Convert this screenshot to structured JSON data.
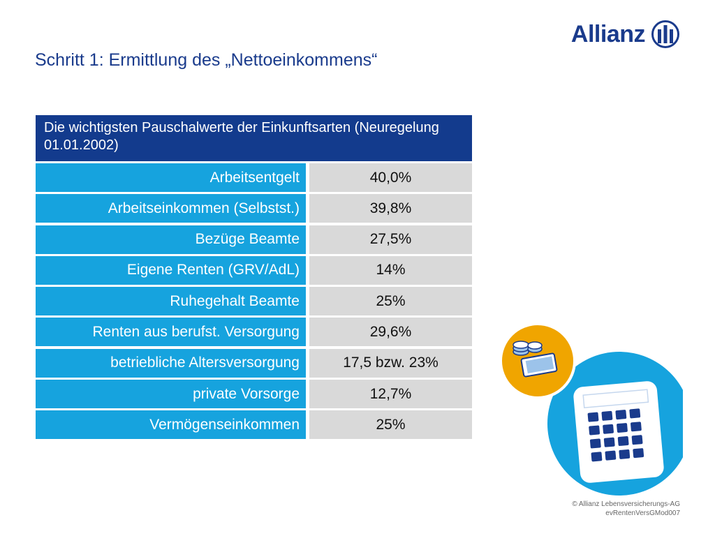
{
  "brand": {
    "name": "Allianz",
    "color": "#1a3b8c"
  },
  "title": "Schritt 1: Ermittlung des „Nettoeinkommens“",
  "table": {
    "header": "Die wichtigsten Pauschalwerte der Einkunftsarten (Neuregelung 01.01.2002)",
    "rows": [
      {
        "label": "Arbeitsentgelt",
        "value": "40,0%"
      },
      {
        "label": "Arbeitseinkommen (Selbstst.)",
        "value": "39,8%"
      },
      {
        "label": "Bezüge Beamte",
        "value": "27,5%"
      },
      {
        "label": "Eigene Renten (GRV/AdL)",
        "value": "14%"
      },
      {
        "label": "Ruhegehalt Beamte",
        "value": "25%"
      },
      {
        "label": "Renten aus berufst. Versorgung",
        "value": "29,6%"
      },
      {
        "label": "betriebliche Altersversorgung",
        "value": "17,5 bzw. 23%"
      },
      {
        "label": "private Vorsorge",
        "value": "12,7%"
      },
      {
        "label": "Vermögenseinkommen",
        "value": "25%"
      }
    ],
    "colors": {
      "header": "#133b8d",
      "label": "#16a3de",
      "value": "#d9d9d9"
    }
  },
  "illustration": {
    "icons": [
      "calculator-icon",
      "money-icon"
    ],
    "colors": {
      "circle_large": "#16a3de",
      "circle_small": "#f0a500"
    }
  },
  "footer": {
    "line1": "© Allianz Lebensversicherungs-AG",
    "line2": "evRentenVersGMod007"
  }
}
